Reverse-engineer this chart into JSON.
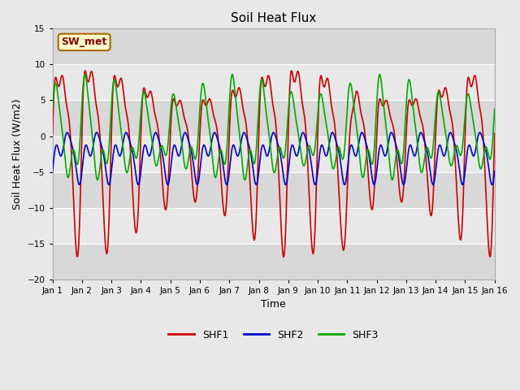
{
  "title": "Soil Heat Flux",
  "xlabel": "Time",
  "ylabel": "Soil Heat Flux (W/m2)",
  "xlim": [
    0,
    15
  ],
  "ylim": [
    -20,
    15
  ],
  "yticks": [
    -20,
    -15,
    -10,
    -5,
    0,
    5,
    10,
    15
  ],
  "xtick_labels": [
    "Jan 1",
    "Jan 2",
    "Jan 3",
    "Jan 4",
    "Jan 5",
    "Jan 6",
    "Jan 7",
    "Jan 8",
    "Jan 9",
    "Jan 10",
    "Jan 11",
    "Jan 12",
    "Jan 13",
    "Jan 14",
    "Jan 15",
    "Jan 16"
  ],
  "background_color": "#e8e8e8",
  "plot_bg_color": "#e8e8e8",
  "grid_color": "white",
  "annotation_text": "SW_met",
  "annotation_bg": "#ffffcc",
  "annotation_border": "#aa6600",
  "shf1_color": "#cc0000",
  "shf2_color": "#0000cc",
  "shf3_color": "#00aa00",
  "line_width": 1.2,
  "band_colors": [
    "#d8d8d8",
    "#e8e8e8"
  ],
  "band_ranges": [
    [
      -20,
      -15
    ],
    [
      -15,
      -10
    ],
    [
      -10,
      -5
    ],
    [
      -5,
      0
    ],
    [
      0,
      5
    ],
    [
      5,
      10
    ],
    [
      10,
      15
    ]
  ]
}
